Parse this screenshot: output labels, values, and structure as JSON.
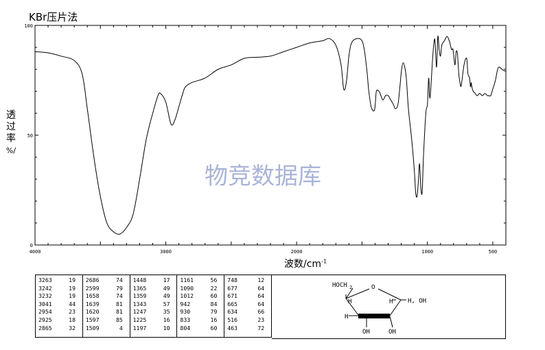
{
  "title": "KBr压片法",
  "watermark": "物竞数据库",
  "ylabel_chars": [
    "透",
    "过",
    "率"
  ],
  "ylabel_unit": "%/",
  "xlabel": "波数/cm",
  "xlabel_sup": "-1",
  "molecule": {
    "labels": [
      "HOCH",
      "2",
      "O",
      "H",
      "H",
      "H, OH",
      "H",
      "OH",
      "OH"
    ]
  },
  "chart_data": {
    "type": "line",
    "xlabel": "波数/cm-1",
    "ylabel": "透过率 %",
    "xlim": [
      4000,
      400
    ],
    "ylim": [
      0,
      100
    ],
    "x_ticks": [
      "4000",
      "3000",
      "2000",
      "1000",
      "500"
    ],
    "y_ticks": [
      "0",
      "50",
      "100"
    ],
    "series": [
      {
        "points": [
          [
            4000,
            88
          ],
          [
            3900,
            87.5
          ],
          [
            3800,
            86
          ],
          [
            3700,
            84
          ],
          [
            3640,
            78
          ],
          [
            3600,
            62
          ],
          [
            3550,
            40
          ],
          [
            3500,
            22
          ],
          [
            3450,
            10
          ],
          [
            3400,
            6
          ],
          [
            3350,
            5
          ],
          [
            3300,
            8
          ],
          [
            3250,
            14
          ],
          [
            3200,
            30
          ],
          [
            3150,
            48
          ],
          [
            3100,
            60
          ],
          [
            3060,
            68
          ],
          [
            3040,
            69
          ],
          [
            3000,
            65
          ],
          [
            2960,
            55
          ],
          [
            2930,
            57
          ],
          [
            2900,
            63
          ],
          [
            2870,
            69
          ],
          [
            2850,
            72
          ],
          [
            2800,
            74
          ],
          [
            2700,
            76
          ],
          [
            2600,
            80
          ],
          [
            2500,
            82
          ],
          [
            2400,
            85
          ],
          [
            2300,
            85.5
          ],
          [
            2200,
            86
          ],
          [
            2100,
            88
          ],
          [
            2000,
            90
          ],
          [
            1900,
            92
          ],
          [
            1800,
            93
          ],
          [
            1750,
            94
          ],
          [
            1700,
            91
          ],
          [
            1660,
            82
          ],
          [
            1640,
            71
          ],
          [
            1620,
            74
          ],
          [
            1600,
            86
          ],
          [
            1580,
            92
          ],
          [
            1540,
            94
          ],
          [
            1500,
            93
          ],
          [
            1480,
            88
          ],
          [
            1460,
            78
          ],
          [
            1448,
            70
          ],
          [
            1430,
            63
          ],
          [
            1410,
            61
          ],
          [
            1400,
            63
          ],
          [
            1390,
            70
          ],
          [
            1370,
            70
          ],
          [
            1355,
            68
          ],
          [
            1340,
            66
          ],
          [
            1320,
            68
          ],
          [
            1300,
            68
          ],
          [
            1280,
            66
          ],
          [
            1260,
            64
          ],
          [
            1245,
            62
          ],
          [
            1225,
            64
          ],
          [
            1210,
            72
          ],
          [
            1197,
            80
          ],
          [
            1185,
            83
          ],
          [
            1170,
            80
          ],
          [
            1160,
            75
          ],
          [
            1145,
            62
          ],
          [
            1120,
            48
          ],
          [
            1100,
            34
          ],
          [
            1090,
            24
          ],
          [
            1080,
            22
          ],
          [
            1070,
            28
          ],
          [
            1060,
            37
          ],
          [
            1050,
            26
          ],
          [
            1040,
            24
          ],
          [
            1030,
            40
          ],
          [
            1012,
            60
          ],
          [
            1000,
            64
          ],
          [
            990,
            76
          ],
          [
            980,
            67
          ],
          [
            960,
            85
          ],
          [
            950,
            92
          ],
          [
            942,
            93
          ],
          [
            930,
            81
          ],
          [
            920,
            95
          ],
          [
            910,
            89
          ],
          [
            900,
            86
          ],
          [
            890,
            91
          ],
          [
            870,
            93
          ],
          [
            850,
            95
          ],
          [
            833,
            93
          ],
          [
            815,
            89
          ],
          [
            804,
            89
          ],
          [
            790,
            82
          ],
          [
            780,
            88
          ],
          [
            770,
            87
          ],
          [
            760,
            78
          ],
          [
            748,
            73
          ],
          [
            740,
            73
          ],
          [
            720,
            82
          ],
          [
            700,
            85
          ],
          [
            690,
            78
          ],
          [
            677,
            76
          ],
          [
            671,
            72
          ],
          [
            665,
            74
          ],
          [
            660,
            72
          ],
          [
            650,
            70
          ],
          [
            634,
            69
          ],
          [
            620,
            68
          ],
          [
            600,
            69
          ],
          [
            580,
            68
          ],
          [
            560,
            69
          ],
          [
            540,
            68
          ],
          [
            530,
            68
          ],
          [
            516,
            68
          ],
          [
            500,
            71
          ],
          [
            480,
            75
          ],
          [
            463,
            80
          ],
          [
            450,
            81
          ],
          [
            430,
            80
          ],
          [
            400,
            79
          ]
        ]
      }
    ]
  },
  "peak_table": {
    "columns": [
      [
        [
          "3263",
          "19"
        ],
        [
          "3242",
          "19"
        ],
        [
          "3232",
          "19"
        ],
        [
          "3041",
          "44"
        ],
        [
          "2954",
          "23"
        ],
        [
          "2925",
          "18"
        ],
        [
          "2865",
          "32"
        ]
      ],
      [
        [
          "2686",
          "74"
        ],
        [
          "2599",
          "79"
        ],
        [
          "1658",
          "74"
        ],
        [
          "1639",
          "81"
        ],
        [
          "1620",
          "81"
        ],
        [
          "1597",
          "85"
        ],
        [
          "1509",
          "4"
        ]
      ],
      [
        [
          "1448",
          "17"
        ],
        [
          "1365",
          "49"
        ],
        [
          "1359",
          "49"
        ],
        [
          "1343",
          "57"
        ],
        [
          "1247",
          "35"
        ],
        [
          "1225",
          "16"
        ],
        [
          "1197",
          "10"
        ]
      ],
      [
        [
          "1161",
          "56"
        ],
        [
          "1090",
          "22"
        ],
        [
          "1012",
          "60"
        ],
        [
          "942",
          "84"
        ],
        [
          "930",
          "79"
        ],
        [
          "833",
          "16"
        ],
        [
          "804",
          "60"
        ]
      ],
      [
        [
          "748",
          "12"
        ],
        [
          "677",
          "64"
        ],
        [
          "671",
          "64"
        ],
        [
          "665",
          "64"
        ],
        [
          "634",
          "66"
        ],
        [
          "516",
          "23"
        ],
        [
          "463",
          "72"
        ]
      ]
    ]
  }
}
